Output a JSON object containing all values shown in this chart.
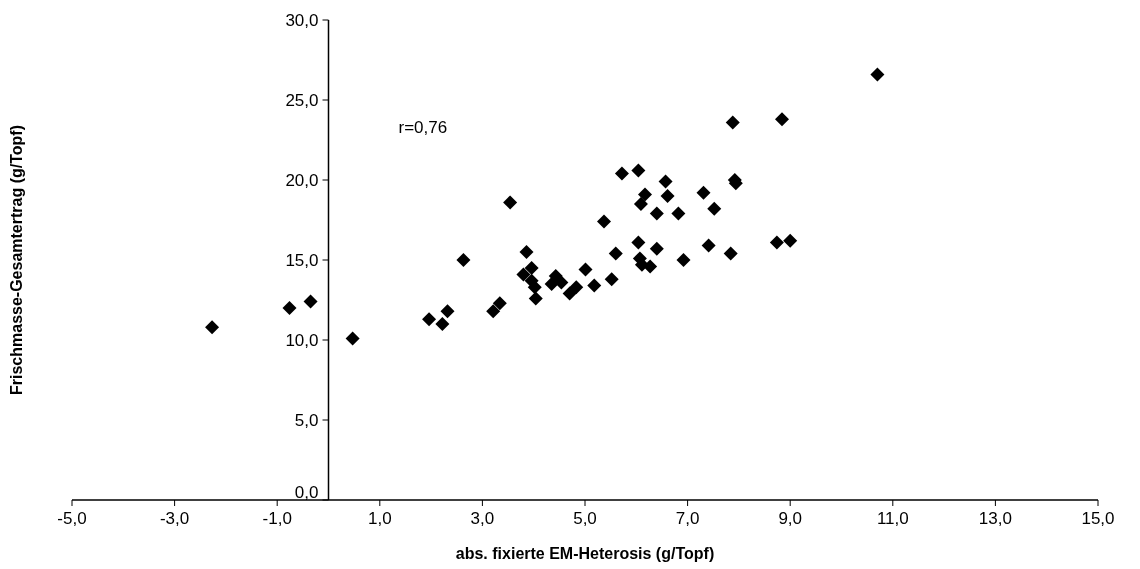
{
  "chart_data": {
    "type": "scatter",
    "xlabel": "abs. fixierte EM-Heterosis (g/Topf)",
    "ylabel": "Frischmasse-Gesamtertrag (g/Topf)",
    "annotations": [
      "r=0,76"
    ],
    "xlim": [
      -5,
      15
    ],
    "xticks": [
      {
        "value": -5,
        "label": "-5,0"
      },
      {
        "value": -3,
        "label": "-3,0"
      },
      {
        "value": -1,
        "label": "-1,0"
      },
      {
        "value": 1,
        "label": "1,0"
      },
      {
        "value": 3,
        "label": "3,0"
      },
      {
        "value": 5,
        "label": "5,0"
      },
      {
        "value": 7,
        "label": "7,0"
      },
      {
        "value": 9,
        "label": "9,0"
      },
      {
        "value": 11,
        "label": "11,0"
      },
      {
        "value": 13,
        "label": "13,0"
      },
      {
        "value": 15,
        "label": "15,0"
      }
    ],
    "ylim": [
      0,
      30
    ],
    "yticks": [
      {
        "value": 0,
        "label": "0,0"
      },
      {
        "value": 5,
        "label": "5,0"
      },
      {
        "value": 10,
        "label": "10,0"
      },
      {
        "value": 15,
        "label": "15,0"
      },
      {
        "value": 20,
        "label": "20,0"
      },
      {
        "value": 25,
        "label": "25,0"
      },
      {
        "value": 30,
        "label": "30,0"
      }
    ],
    "marker": "diamond",
    "grid": false,
    "series": [
      {
        "color": "#000000",
        "x": [
          -2.27,
          -0.76,
          -0.35,
          0.47,
          1.96,
          2.22,
          2.32,
          2.63,
          3.54,
          3.21,
          3.34,
          3.86,
          3.8,
          3.96,
          3.96,
          4.02,
          4.04,
          4.35,
          4.43,
          4.54,
          4.7,
          4.83,
          5.01,
          5.18,
          5.37,
          5.52,
          5.6,
          5.72,
          6.04,
          6.04,
          6.07,
          6.11,
          6.27,
          6.09,
          6.17,
          6.4,
          6.4,
          6.57,
          6.61,
          6.82,
          6.92,
          7.31,
          7.41,
          7.52,
          7.84,
          7.88,
          7.92,
          7.94,
          8.74,
          8.84,
          9.0,
          10.7
        ],
        "values": [
          10.8,
          12.0,
          12.4,
          10.1,
          11.3,
          11.0,
          11.8,
          15.0,
          18.6,
          11.8,
          12.3,
          15.5,
          14.1,
          14.5,
          13.7,
          13.3,
          12.6,
          13.5,
          14.0,
          13.6,
          12.9,
          13.3,
          14.4,
          13.4,
          17.4,
          13.8,
          15.4,
          20.4,
          20.6,
          16.1,
          15.1,
          14.7,
          14.6,
          18.5,
          19.1,
          17.9,
          15.7,
          19.9,
          19.0,
          17.9,
          15.0,
          19.2,
          15.9,
          18.2,
          15.4,
          23.6,
          20.0,
          19.8,
          16.1,
          23.8,
          16.2,
          26.6
        ]
      }
    ]
  }
}
